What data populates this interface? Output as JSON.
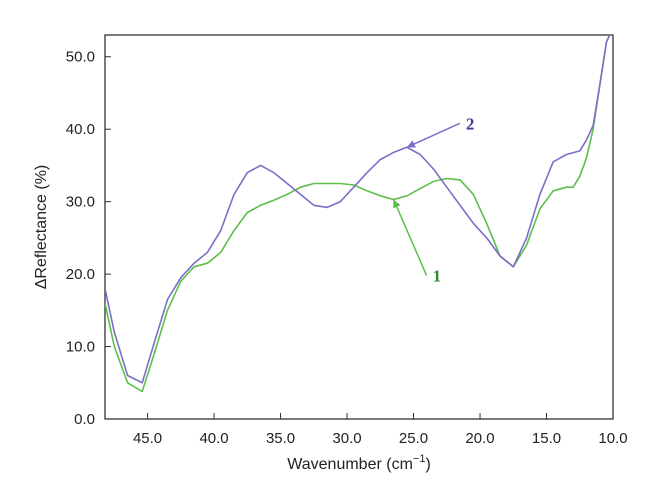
{
  "chart_data": {
    "type": "line",
    "xlabel": "Wavenumber (cm",
    "xlabel_sup": "−1",
    "xlabel_close": ")",
    "ylabel": "ΔReflectance (%)",
    "xlim": [
      48.2,
      10.0
    ],
    "ylim": [
      0.0,
      53.0
    ],
    "x_ticks": [
      45.0,
      40.0,
      35.0,
      30.0,
      25.0,
      20.0,
      15.0,
      10.0
    ],
    "x_tick_labels": [
      "45.0",
      "40.0",
      "35.0",
      "30.0",
      "25.0",
      "20.0",
      "15.0",
      "10.0"
    ],
    "y_ticks": [
      0.0,
      10.0,
      20.0,
      30.0,
      40.0,
      50.0
    ],
    "y_tick_labels": [
      "0.0",
      "10.0",
      "20.0",
      "30.0",
      "40.0",
      "50.0"
    ],
    "grid": false,
    "series": [
      {
        "name": "1",
        "color": "#5cbf4a",
        "label_color": "#2e8b2e",
        "x": [
          48.2,
          47.5,
          46.5,
          45.4,
          44.5,
          43.5,
          42.5,
          41.5,
          40.5,
          39.5,
          38.5,
          37.5,
          36.5,
          35.5,
          34.5,
          33.5,
          32.5,
          31.5,
          30.5,
          29.5,
          28.5,
          27.5,
          26.5,
          25.5,
          24.5,
          23.5,
          22.5,
          21.5,
          20.5,
          19.5,
          18.5,
          17.5,
          16.5,
          15.5,
          14.5,
          13.5,
          13.0,
          12.5,
          12.0,
          11.5,
          11.0,
          10.5,
          10.0
        ],
        "y": [
          16.0,
          10.0,
          5.0,
          3.8,
          9.0,
          15.0,
          19.0,
          21.0,
          21.5,
          23.0,
          26.0,
          28.5,
          29.5,
          30.2,
          31.0,
          32.0,
          32.5,
          32.5,
          32.5,
          32.3,
          31.5,
          30.8,
          30.3,
          30.8,
          31.8,
          32.8,
          33.2,
          33.0,
          31.0,
          27.0,
          22.5,
          21.0,
          24.0,
          29.0,
          31.5,
          32.0,
          32.0,
          33.5,
          36.0,
          40.0,
          46.0,
          52.0,
          54.0
        ]
      },
      {
        "name": "2",
        "color": "#7b6ec8",
        "label_color": "#3a3a9a",
        "x": [
          48.2,
          47.5,
          46.5,
          45.4,
          44.5,
          43.5,
          42.5,
          41.5,
          40.5,
          39.5,
          38.5,
          37.5,
          36.5,
          35.5,
          34.5,
          33.5,
          32.5,
          31.5,
          30.5,
          29.5,
          28.5,
          27.5,
          26.5,
          25.5,
          24.5,
          23.5,
          22.5,
          21.5,
          20.5,
          19.5,
          18.5,
          17.5,
          16.5,
          15.5,
          14.5,
          13.5,
          12.5,
          12.0,
          11.5,
          11.0,
          10.5,
          10.0
        ],
        "y": [
          18.0,
          12.0,
          6.0,
          5.0,
          10.5,
          16.5,
          19.5,
          21.5,
          23.0,
          26.0,
          31.0,
          34.0,
          35.0,
          34.0,
          32.5,
          31.0,
          29.5,
          29.2,
          30.0,
          32.0,
          34.0,
          35.8,
          36.8,
          37.5,
          36.5,
          34.5,
          32.0,
          29.5,
          27.0,
          25.0,
          22.5,
          21.0,
          25.0,
          31.0,
          35.5,
          36.5,
          37.0,
          38.5,
          40.5,
          46.0,
          52.0,
          54.0
        ]
      }
    ],
    "annotations": [
      {
        "text": "2",
        "series": "2",
        "at_x": 25.5
      },
      {
        "text": "1",
        "series": "1",
        "at_x": 26.5
      }
    ]
  }
}
